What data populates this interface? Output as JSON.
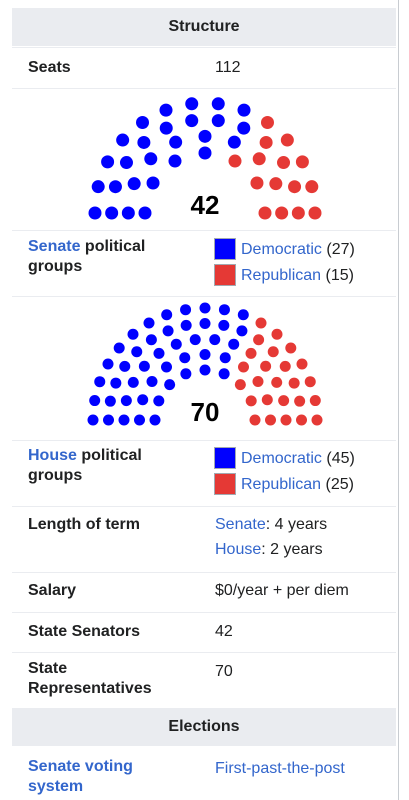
{
  "structure_header": "Structure",
  "seats": {
    "label": "Seats",
    "value": 112
  },
  "senate": {
    "label_link": "Senate",
    "label_text": " political groups",
    "total": 42,
    "groups": [
      {
        "name": "Democratic",
        "color": "#0000ff",
        "value": 27,
        "value_label": "(27)"
      },
      {
        "name": "Republican",
        "color": "#e53935",
        "value": 15,
        "value_label": "(15)"
      }
    ]
  },
  "house": {
    "label_link": "House",
    "label_text": " political groups",
    "total": 70,
    "groups": [
      {
        "name": "Democratic",
        "color": "#0000ff",
        "value": 45,
        "value_label": "(45)"
      },
      {
        "name": "Republican",
        "color": "#e53935",
        "value": 25,
        "value_label": "(25)"
      }
    ]
  },
  "length_of_term": {
    "label": "Length of term",
    "items": [
      {
        "link": "Senate",
        "text": ": 4 years"
      },
      {
        "link": "House",
        "text": ": 2 years"
      }
    ]
  },
  "salary": {
    "label": "Salary",
    "value": "$0/year + per diem"
  },
  "state_senators": {
    "label": "State Senators",
    "value": 42
  },
  "state_representatives": {
    "label": "State Representatives",
    "value": 70
  },
  "elections_header": "Elections",
  "senate_voting_system": {
    "label": "Senate voting system",
    "value": "First-past-the-post"
  }
}
